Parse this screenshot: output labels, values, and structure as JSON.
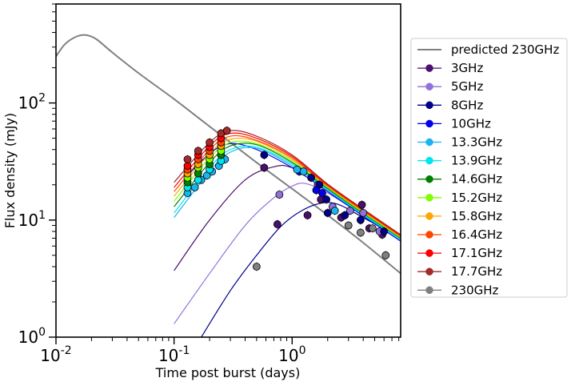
{
  "chart_data": {
    "type": "scatter",
    "title": "",
    "xlabel": "Time post burst (days)",
    "ylabel": "Flux density (mJy)",
    "xscale": "log",
    "yscale": "log",
    "xlim": [
      0.01,
      8.3
    ],
    "ylim": [
      1,
      700
    ],
    "x_tick_labels": [
      {
        "value": 0.01,
        "label": "10^-2"
      },
      {
        "value": 0.1,
        "label": "10^-1"
      },
      {
        "value": 1,
        "label": "10^0"
      }
    ],
    "y_tick_labels": [
      {
        "value": 1,
        "label": "10^0"
      },
      {
        "value": 10,
        "label": "10^1"
      },
      {
        "value": 100,
        "label": "10^2"
      }
    ],
    "legend_position": "outside-right",
    "predicted_curve": {
      "name": "predicted 230GHz",
      "color": "#808080",
      "x": [
        0.01,
        0.012,
        0.015,
        0.018,
        0.022,
        0.03,
        0.05,
        0.1,
        0.2,
        0.5,
        1,
        2,
        4,
        8.3
      ],
      "y": [
        250,
        320,
        370,
        380,
        350,
        270,
        180,
        108,
        63,
        31,
        18.5,
        11,
        6.4,
        3.5
      ]
    },
    "series": [
      {
        "name": "3GHz",
        "color": "#4b0f6e",
        "curve": {
          "x": [
            0.1,
            0.2,
            0.4,
            0.7,
            1.0,
            2.0,
            4.0,
            8.3
          ],
          "y": [
            3.7,
            10,
            22,
            28.5,
            28,
            20,
            12,
            7.2
          ]
        },
        "points": [
          {
            "x": 0.58,
            "y": 28
          },
          {
            "x": 0.75,
            "y": 9.2
          },
          {
            "x": 1.35,
            "y": 11
          },
          {
            "x": 1.75,
            "y": 15
          },
          {
            "x": 2.6,
            "y": 10.5
          },
          {
            "x": 3.9,
            "y": 13.5
          },
          {
            "x": 4.5,
            "y": 8.5
          },
          {
            "x": 5.8,
            "y": 7.5
          }
        ]
      },
      {
        "name": "5GHz",
        "color": "#9370db",
        "curve": {
          "x": [
            0.1,
            0.2,
            0.4,
            0.7,
            1.0,
            1.3,
            2.0,
            4.0,
            8.3
          ],
          "y": [
            1.3,
            3.5,
            9,
            15.5,
            19.5,
            20.5,
            17,
            11,
            6.8
          ]
        },
        "points": [
          {
            "x": 0.78,
            "y": 16.5
          },
          {
            "x": 1.65,
            "y": 20
          },
          {
            "x": 2.2,
            "y": 13
          },
          {
            "x": 3.1,
            "y": 12
          },
          {
            "x": 4.0,
            "y": 11.5
          },
          {
            "x": 5.5,
            "y": 8
          }
        ]
      },
      {
        "name": "8GHz",
        "color": "#00008b",
        "curve": {
          "x": [
            0.17,
            0.3,
            0.5,
            0.8,
            1.2,
            1.8,
            2.5,
            4.0,
            8.3
          ],
          "y": [
            1.0,
            2.5,
            5,
            8.8,
            12,
            14,
            13.5,
            10.5,
            7
          ]
        },
        "points": [
          {
            "x": 0.58,
            "y": 36
          },
          {
            "x": 1.45,
            "y": 23
          },
          {
            "x": 1.7,
            "y": 20
          },
          {
            "x": 1.95,
            "y": 15
          },
          {
            "x": 2.0,
            "y": 11.5
          },
          {
            "x": 2.8,
            "y": 11
          },
          {
            "x": 3.8,
            "y": 10
          },
          {
            "x": 6.0,
            "y": 8
          }
        ]
      },
      {
        "name": "10GHz",
        "color": "#0000ee",
        "curve": {
          "x": [
            0.12,
            0.2,
            0.3,
            0.5,
            1.0,
            2.0,
            4.0,
            8.3
          ],
          "y": [
            22,
            37,
            45,
            40,
            28,
            17.5,
            10.8,
            6.6
          ]
        },
        "points": [
          {
            "x": 1.15,
            "y": 26
          },
          {
            "x": 1.6,
            "y": 18
          },
          {
            "x": 1.8,
            "y": 17
          }
        ]
      },
      {
        "name": "13.3GHz",
        "color": "#1ab4f0",
        "curve": {
          "x": [
            0.1,
            0.2,
            0.3,
            0.5,
            1.0,
            2.0,
            4.0,
            8.3
          ],
          "y": [
            10.5,
            26,
            38,
            41,
            29,
            18,
            11,
            6.8
          ]
        },
        "points": [
          {
            "x": 0.13,
            "y": 17
          },
          {
            "x": 0.15,
            "y": 19
          },
          {
            "x": 0.17,
            "y": 22
          },
          {
            "x": 0.19,
            "y": 24
          },
          {
            "x": 0.21,
            "y": 26
          },
          {
            "x": 0.24,
            "y": 29
          },
          {
            "x": 0.27,
            "y": 33
          },
          {
            "x": 1.1,
            "y": 27
          },
          {
            "x": 1.25,
            "y": 26
          },
          {
            "x": 2.3,
            "y": 12
          }
        ]
      },
      {
        "name": "13.9GHz",
        "color": "#00e5ee",
        "curve": {
          "x": [
            0.1,
            0.2,
            0.3,
            0.5,
            1.0,
            2.0,
            4.0,
            8.3
          ],
          "y": [
            11.5,
            28,
            40,
            42,
            30,
            18.3,
            11.2,
            6.9
          ]
        },
        "points": [
          {
            "x": 0.13,
            "y": 19
          },
          {
            "x": 0.16,
            "y": 22
          },
          {
            "x": 0.2,
            "y": 27
          },
          {
            "x": 0.25,
            "y": 32
          }
        ]
      },
      {
        "name": "14.6GHz",
        "color": "#008000",
        "curve": {
          "x": [
            0.1,
            0.2,
            0.3,
            0.5,
            1.0,
            2.0,
            4.0,
            8.3
          ],
          "y": [
            13,
            31,
            43,
            44,
            31,
            18.6,
            11.4,
            7.0
          ]
        },
        "points": [
          {
            "x": 0.13,
            "y": 21
          },
          {
            "x": 0.16,
            "y": 25
          },
          {
            "x": 0.2,
            "y": 30
          },
          {
            "x": 0.25,
            "y": 36
          }
        ]
      },
      {
        "name": "15.2GHz",
        "color": "#7fff00",
        "curve": {
          "x": [
            0.1,
            0.2,
            0.3,
            0.5,
            1.0,
            2.0,
            4.0,
            8.3
          ],
          "y": [
            14.5,
            34,
            46,
            45,
            32,
            19,
            11.6,
            7.1
          ]
        },
        "points": [
          {
            "x": 0.13,
            "y": 23
          },
          {
            "x": 0.16,
            "y": 28
          },
          {
            "x": 0.2,
            "y": 33
          },
          {
            "x": 0.25,
            "y": 39
          }
        ]
      },
      {
        "name": "15.8GHz",
        "color": "#ffa500",
        "curve": {
          "x": [
            0.1,
            0.2,
            0.3,
            0.5,
            1.0,
            2.0,
            4.0,
            8.3
          ],
          "y": [
            16,
            37,
            49,
            47,
            33,
            19.3,
            11.8,
            7.2
          ]
        },
        "points": [
          {
            "x": 0.13,
            "y": 25
          },
          {
            "x": 0.16,
            "y": 30
          },
          {
            "x": 0.2,
            "y": 36
          },
          {
            "x": 0.25,
            "y": 43
          }
        ]
      },
      {
        "name": "16.4GHz",
        "color": "#ff4500",
        "curve": {
          "x": [
            0.1,
            0.2,
            0.3,
            0.5,
            1.0,
            2.0,
            4.0,
            8.3
          ],
          "y": [
            17.5,
            40,
            52,
            48,
            34,
            19.6,
            12,
            7.3
          ]
        },
        "points": [
          {
            "x": 0.13,
            "y": 27
          },
          {
            "x": 0.16,
            "y": 33
          },
          {
            "x": 0.2,
            "y": 39
          },
          {
            "x": 0.25,
            "y": 46
          }
        ]
      },
      {
        "name": "17.1GHz",
        "color": "#ff0000",
        "curve": {
          "x": [
            0.1,
            0.2,
            0.3,
            0.5,
            1.0,
            2.0,
            4.0,
            8.3
          ],
          "y": [
            19,
            43,
            55,
            50,
            35,
            20,
            12.2,
            7.4
          ]
        },
        "points": [
          {
            "x": 0.13,
            "y": 29
          },
          {
            "x": 0.16,
            "y": 36
          },
          {
            "x": 0.2,
            "y": 42
          },
          {
            "x": 0.25,
            "y": 50
          }
        ]
      },
      {
        "name": "17.7GHz",
        "color": "#a52a2a",
        "curve": {
          "x": [
            0.1,
            0.2,
            0.3,
            0.5,
            1.0,
            2.0,
            4.0,
            8.3
          ],
          "y": [
            21,
            46,
            58,
            52,
            36,
            20.3,
            12.4,
            7.5
          ]
        },
        "points": [
          {
            "x": 0.13,
            "y": 33
          },
          {
            "x": 0.16,
            "y": 39
          },
          {
            "x": 0.2,
            "y": 46
          },
          {
            "x": 0.25,
            "y": 55
          },
          {
            "x": 0.28,
            "y": 58
          }
        ]
      },
      {
        "name": "230GHz",
        "color": "#808080",
        "curve": null,
        "points": [
          {
            "x": 0.5,
            "y": 4
          },
          {
            "x": 3.0,
            "y": 9
          },
          {
            "x": 3.8,
            "y": 7.8
          },
          {
            "x": 4.8,
            "y": 8.5
          },
          {
            "x": 6.2,
            "y": 5
          }
        ]
      }
    ]
  }
}
